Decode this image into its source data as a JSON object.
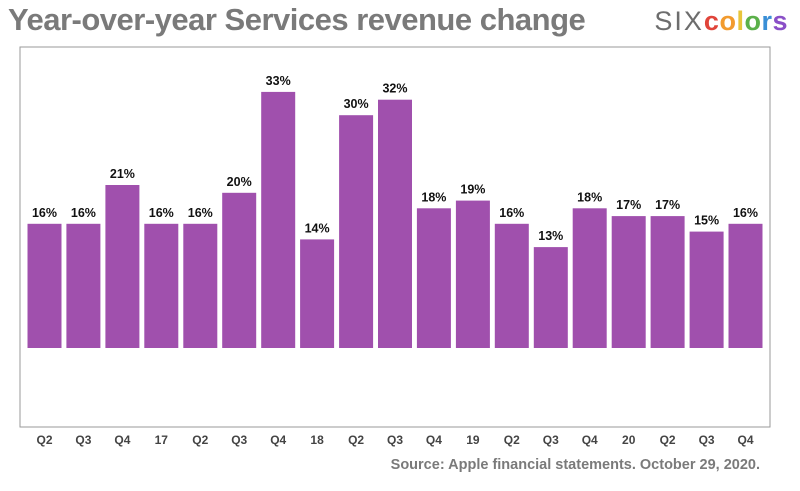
{
  "chart_data": {
    "type": "bar",
    "title": "Year-over-year Services revenue change",
    "categories": [
      "Q2",
      "Q3",
      "Q4",
      "17",
      "Q2",
      "Q3",
      "Q4",
      "18",
      "Q2",
      "Q3",
      "Q4",
      "19",
      "Q2",
      "Q3",
      "Q4",
      "20",
      "Q2",
      "Q3",
      "Q4"
    ],
    "values": [
      16,
      16,
      21,
      16,
      16,
      20,
      33,
      14,
      30,
      32,
      18,
      19,
      16,
      13,
      18,
      17,
      17,
      15,
      16
    ],
    "data_labels": [
      "16%",
      "16%",
      "21%",
      "16%",
      "16%",
      "20%",
      "33%",
      "14%",
      "30%",
      "32%",
      "18%",
      "19%",
      "16%",
      "13%",
      "18%",
      "17%",
      "17%",
      "15%",
      "16%"
    ],
    "xlabel": "",
    "ylabel": "",
    "ylim": [
      -10,
      37
    ],
    "grid": false,
    "bar_color": "#a050ad"
  },
  "branding": {
    "logo_six": "SIX",
    "logo_letters": [
      "c",
      "o",
      "l",
      "o",
      "r",
      "s"
    ],
    "logo_colors": [
      "#e0443a",
      "#f29b2e",
      "#e8c53b",
      "#5bb04a",
      "#3a8fd6",
      "#8a4fc7"
    ]
  },
  "source_note": "Source: Apple financial statements. October 29, 2020."
}
